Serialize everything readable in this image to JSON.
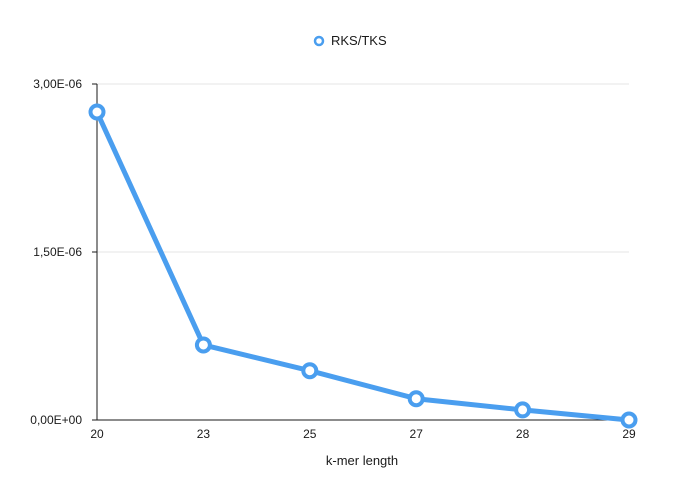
{
  "chart_data": {
    "type": "line",
    "title": "",
    "xlabel": "k-mer length",
    "ylabel": "",
    "categories": [
      "20",
      "23",
      "25",
      "27",
      "28",
      "29"
    ],
    "series": [
      {
        "name": "RKS/TKS",
        "color": "#4A9EEF",
        "values": [
          2.75e-06,
          6.7e-07,
          4.4e-07,
          1.9e-07,
          9e-08,
          0.0
        ]
      }
    ],
    "ylim": [
      0,
      3e-06
    ],
    "yticks": [
      {
        "value": 0,
        "label": "0,00E+00"
      },
      {
        "value": 1.5e-06,
        "label": "1,50E-06"
      },
      {
        "value": 3e-06,
        "label": "3,00E-06"
      }
    ],
    "grid": true,
    "legend": "top-center"
  }
}
